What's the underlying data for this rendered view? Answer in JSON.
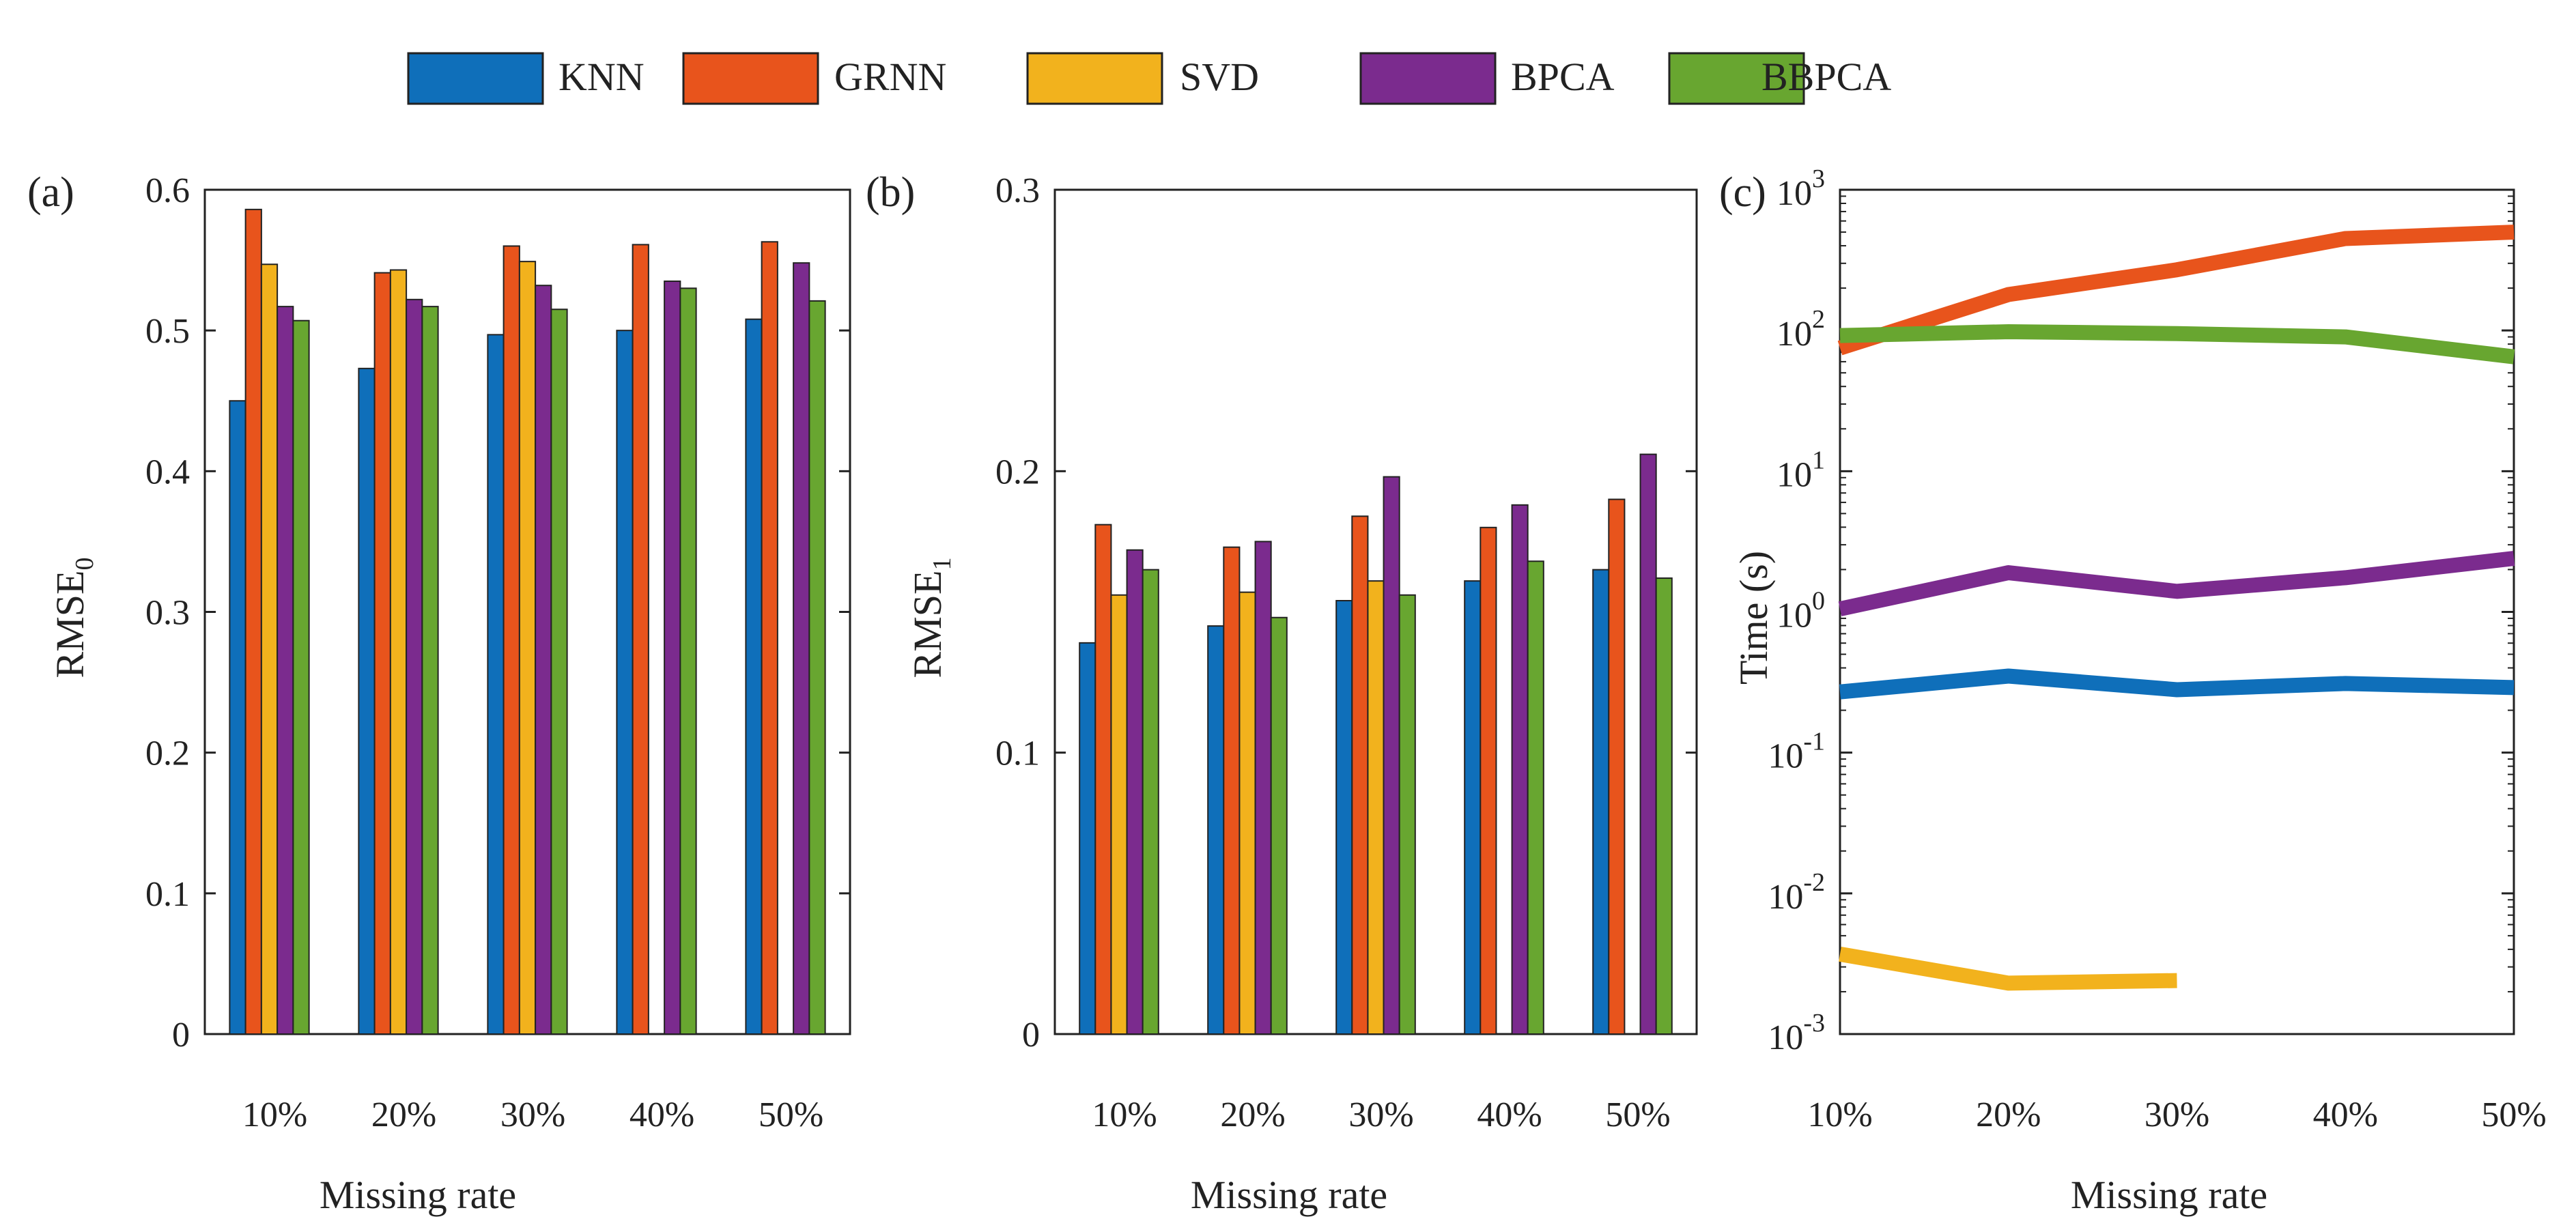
{
  "legend": [
    {
      "name": "KNN",
      "color": "#0f6fba"
    },
    {
      "name": "GRNN",
      "color": "#e8541c"
    },
    {
      "name": "SVD",
      "color": "#f2b21d"
    },
    {
      "name": "BPCA",
      "color": "#7b2b8e"
    },
    {
      "name": "BBPCA",
      "color": "#68a630"
    }
  ],
  "chart_data": [
    {
      "type": "bar",
      "panel": "(a)",
      "categories": [
        "10%",
        "20%",
        "30%",
        "40%",
        "50%"
      ],
      "xlabel": "Missing rate",
      "ylabel": "RMSE",
      "ylabel_sub": "0",
      "ylim": [
        0,
        0.6
      ],
      "yticks": [
        0,
        0.1,
        0.2,
        0.3,
        0.4,
        0.5,
        0.6
      ],
      "ytick_labels": [
        "0",
        "0.1",
        "0.2",
        "0.3",
        "0.4",
        "0.5",
        "0.6"
      ],
      "series": [
        {
          "name": "KNN",
          "values": [
            0.45,
            0.473,
            0.497,
            0.5,
            0.508
          ]
        },
        {
          "name": "GRNN",
          "values": [
            0.586,
            0.541,
            0.56,
            0.561,
            0.563
          ]
        },
        {
          "name": "SVD",
          "values": [
            0.547,
            0.543,
            0.549,
            null,
            null
          ]
        },
        {
          "name": "BPCA",
          "values": [
            0.517,
            0.522,
            0.532,
            0.535,
            0.548
          ]
        },
        {
          "name": "BBPCA",
          "values": [
            0.507,
            0.517,
            0.515,
            0.53,
            0.521
          ]
        }
      ]
    },
    {
      "type": "bar",
      "panel": "(b)",
      "categories": [
        "10%",
        "20%",
        "30%",
        "40%",
        "50%"
      ],
      "xlabel": "Missing rate",
      "ylabel": "RMSE",
      "ylabel_sub": "1",
      "ylim": [
        0,
        0.3
      ],
      "yticks": [
        0,
        0.1,
        0.2,
        0.3
      ],
      "ytick_labels": [
        "0",
        "0.1",
        "0.2",
        "0.3"
      ],
      "series": [
        {
          "name": "KNN",
          "values": [
            0.139,
            0.145,
            0.154,
            0.161,
            0.165
          ]
        },
        {
          "name": "GRNN",
          "values": [
            0.181,
            0.173,
            0.184,
            0.18,
            0.19
          ]
        },
        {
          "name": "SVD",
          "values": [
            0.156,
            0.157,
            0.161,
            null,
            null
          ]
        },
        {
          "name": "BPCA",
          "values": [
            0.172,
            0.175,
            0.198,
            0.188,
            0.206
          ]
        },
        {
          "name": "BBPCA",
          "values": [
            0.165,
            0.148,
            0.156,
            0.168,
            0.162
          ]
        }
      ]
    },
    {
      "type": "line",
      "panel": "(c)",
      "categories": [
        "10%",
        "20%",
        "30%",
        "40%",
        "50%"
      ],
      "xlabel": "Missing rate",
      "ylabel": "Time (s)",
      "yscale": "log",
      "ylim": [
        0.001,
        1000
      ],
      "ytick_base": "10",
      "ytick_exponents": [
        "-3",
        "-2",
        "-1",
        "0",
        "1",
        "2",
        "3"
      ],
      "series": [
        {
          "name": "KNN",
          "values": [
            0.27,
            0.35,
            0.28,
            0.31,
            0.29
          ]
        },
        {
          "name": "GRNN",
          "values": [
            75,
            180,
            270,
            450,
            500
          ]
        },
        {
          "name": "SVD",
          "values": [
            0.0037,
            0.0023,
            0.0024,
            null,
            null
          ]
        },
        {
          "name": "BPCA",
          "values": [
            1.05,
            1.9,
            1.4,
            1.75,
            2.4
          ]
        },
        {
          "name": "BBPCA",
          "values": [
            92,
            98,
            95,
            90,
            65
          ]
        }
      ]
    }
  ]
}
